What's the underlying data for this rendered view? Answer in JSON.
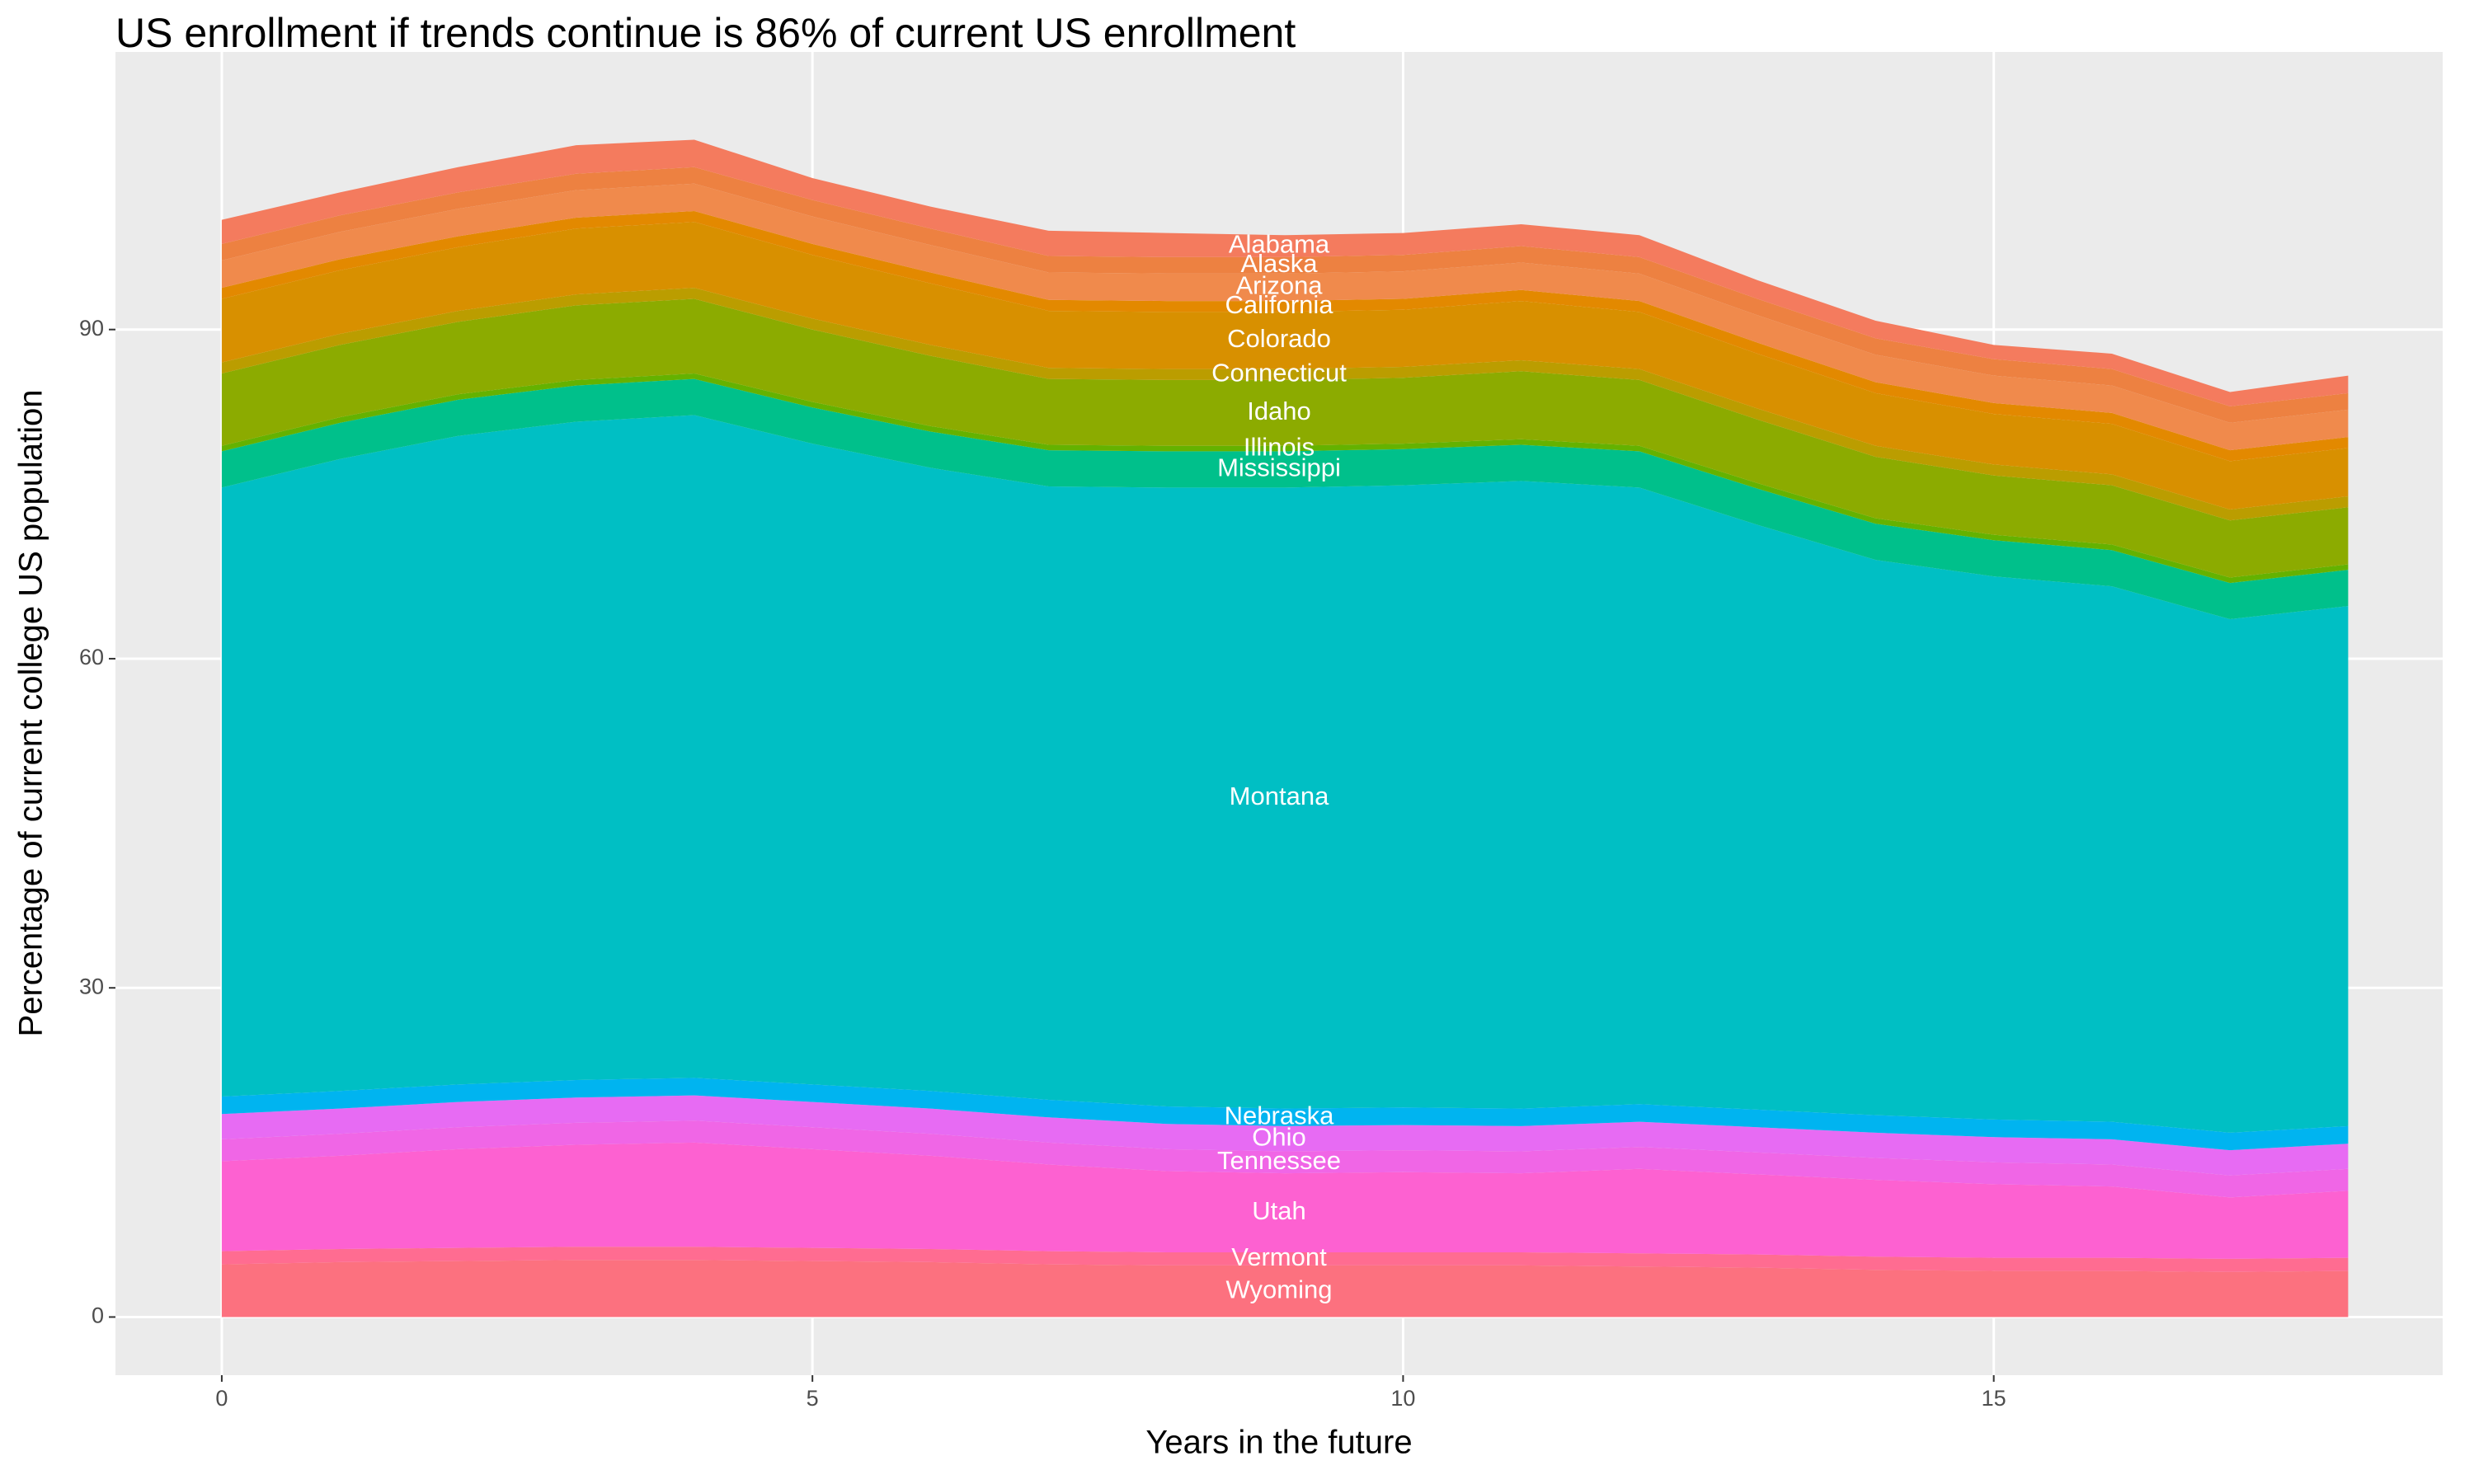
{
  "chart_data": {
    "type": "stacked-area",
    "title": "US enrollment if trends continue is 86% of current US enrollment",
    "x_label": "Years in the future",
    "y_label": "Percentage of current college US population",
    "x": [
      0,
      1,
      2,
      3,
      4,
      5,
      6,
      7,
      8,
      9,
      10,
      11,
      12,
      13,
      14,
      15,
      16,
      17,
      18
    ],
    "xlim": [
      -0.9,
      18.8
    ],
    "ylim": [
      -5.3,
      115.3
    ],
    "xticks": [
      0,
      5,
      10,
      15
    ],
    "yticks": [
      0,
      30,
      60,
      90
    ],
    "grid": true,
    "series": [
      {
        "name": "Wyoming",
        "color": "#FC717F",
        "values": [
          4.8,
          5.0,
          5.1,
          5.2,
          5.2,
          5.1,
          5.0,
          4.8,
          4.7,
          4.7,
          4.7,
          4.7,
          4.6,
          4.5,
          4.3,
          4.2,
          4.2,
          4.1,
          4.2
        ]
      },
      {
        "name": "Vermont",
        "color": "#FF6C91",
        "values": [
          1.2,
          1.2,
          1.2,
          1.2,
          1.2,
          1.2,
          1.2,
          1.2,
          1.2,
          1.2,
          1.2,
          1.2,
          1.2,
          1.2,
          1.2,
          1.2,
          1.2,
          1.2,
          1.2
        ]
      },
      {
        "name": "Utah",
        "color": "#FD61D1",
        "values": [
          8.2,
          8.5,
          9.0,
          9.3,
          9.5,
          9.0,
          8.5,
          7.9,
          7.4,
          7.2,
          7.3,
          7.2,
          7.7,
          7.3,
          7.0,
          6.7,
          6.5,
          5.6,
          6.1
        ]
      },
      {
        "name": "Tennessee",
        "color": "#F066E6",
        "values": [
          2.0,
          2.0,
          2.0,
          2.0,
          2.0,
          2.0,
          2.0,
          2.0,
          2.0,
          2.0,
          2.0,
          2.0,
          2.0,
          2.0,
          2.0,
          2.0,
          2.0,
          2.0,
          2.0
        ]
      },
      {
        "name": "Ohio",
        "color": "#E76BF3",
        "values": [
          2.3,
          2.3,
          2.3,
          2.3,
          2.3,
          2.3,
          2.3,
          2.3,
          2.3,
          2.3,
          2.3,
          2.3,
          2.3,
          2.3,
          2.3,
          2.3,
          2.3,
          2.3,
          2.3
        ]
      },
      {
        "name": "Nebraska",
        "color": "#00B4F0",
        "values": [
          1.6,
          1.6,
          1.6,
          1.6,
          1.6,
          1.6,
          1.6,
          1.6,
          1.6,
          1.6,
          1.6,
          1.6,
          1.6,
          1.6,
          1.6,
          1.6,
          1.6,
          1.6,
          1.6
        ]
      },
      {
        "name": "Montana",
        "color": "#00BFC4",
        "values": [
          55.5,
          57.6,
          59.1,
          60.0,
          60.4,
          58.4,
          56.8,
          55.9,
          56.4,
          56.6,
          56.7,
          57.2,
          56.2,
          53.3,
          50.6,
          49.5,
          48.8,
          46.8,
          47.4
        ]
      },
      {
        "name": "Mississippi",
        "color": "#00C08B",
        "values": [
          3.3,
          3.3,
          3.3,
          3.3,
          3.3,
          3.3,
          3.3,
          3.3,
          3.3,
          3.3,
          3.3,
          3.3,
          3.3,
          3.3,
          3.3,
          3.3,
          3.3,
          3.3,
          3.3
        ]
      },
      {
        "name": "Illinois",
        "color": "#64B200",
        "values": [
          0.5,
          0.5,
          0.5,
          0.5,
          0.5,
          0.5,
          0.5,
          0.5,
          0.5,
          0.5,
          0.5,
          0.5,
          0.5,
          0.5,
          0.5,
          0.5,
          0.5,
          0.5,
          0.5
        ]
      },
      {
        "name": "Idaho",
        "color": "#8CAB00",
        "values": [
          6.6,
          6.6,
          6.6,
          6.8,
          6.8,
          6.6,
          6.4,
          6.0,
          6.0,
          6.0,
          6.0,
          6.2,
          6.0,
          5.8,
          5.6,
          5.4,
          5.4,
          5.2,
          5.2
        ]
      },
      {
        "name": "Connecticut",
        "color": "#BB9D00",
        "values": [
          1.0,
          1.0,
          1.0,
          1.0,
          1.0,
          1.0,
          1.0,
          1.0,
          1.0,
          1.0,
          1.0,
          1.0,
          1.0,
          1.0,
          1.0,
          1.0,
          1.0,
          1.0,
          1.0
        ]
      },
      {
        "name": "Colorado",
        "color": "#D89000",
        "values": [
          5.8,
          5.8,
          5.8,
          6.0,
          6.0,
          5.8,
          5.6,
          5.2,
          5.2,
          5.2,
          5.2,
          5.4,
          5.2,
          5.0,
          4.8,
          4.6,
          4.6,
          4.4,
          4.4
        ]
      },
      {
        "name": "California",
        "color": "#E38900",
        "values": [
          1.0,
          1.0,
          1.0,
          1.0,
          1.0,
          1.0,
          1.0,
          1.0,
          1.0,
          1.0,
          1.0,
          1.0,
          1.0,
          1.0,
          1.0,
          1.0,
          1.0,
          1.0,
          1.0
        ]
      },
      {
        "name": "Arizona",
        "color": "#F08A4C",
        "values": [
          2.5,
          2.5,
          2.5,
          2.5,
          2.5,
          2.5,
          2.5,
          2.5,
          2.5,
          2.5,
          2.5,
          2.5,
          2.5,
          2.5,
          2.5,
          2.5,
          2.5,
          2.5,
          2.5
        ]
      },
      {
        "name": "Alaska",
        "color": "#ED8141",
        "values": [
          1.5,
          1.5,
          1.5,
          1.5,
          1.5,
          1.5,
          1.5,
          1.5,
          1.5,
          1.5,
          1.5,
          1.5,
          1.5,
          1.5,
          1.5,
          1.5,
          1.5,
          1.5,
          1.5
        ]
      },
      {
        "name": "Alabama",
        "color": "#F47B5E",
        "values": [
          2.2,
          2.1,
          2.3,
          2.6,
          2.5,
          2.0,
          2.0,
          2.3,
          2.2,
          2.0,
          2.0,
          2.0,
          2.0,
          1.7,
          1.6,
          1.3,
          1.4,
          1.3,
          1.6
        ]
      }
    ]
  }
}
